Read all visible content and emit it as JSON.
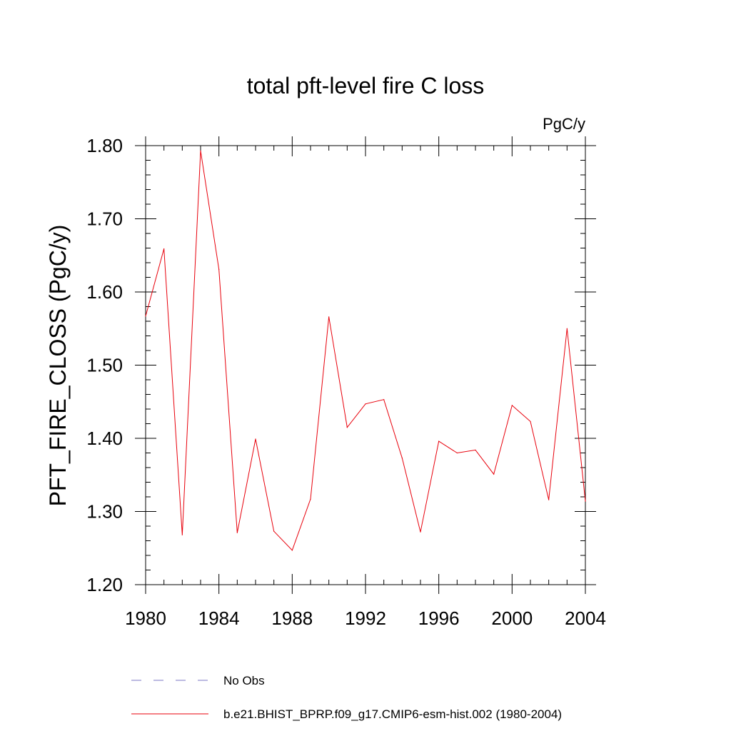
{
  "chart_data": {
    "type": "line",
    "title": "total pft-level fire C loss",
    "units_label": "PgC/y",
    "ylabel": "PFT_FIRE_CLOSS  (PgC/y)",
    "xlabel": "",
    "xlim": [
      1980,
      2004
    ],
    "ylim": [
      1.2,
      1.8
    ],
    "x_ticks": [
      1980,
      1984,
      1988,
      1992,
      1996,
      2000,
      2004
    ],
    "x_tick_labels": [
      "1980",
      "1984",
      "1988",
      "1992",
      "1996",
      "2000",
      "2004"
    ],
    "y_ticks": [
      1.2,
      1.3,
      1.4,
      1.5,
      1.6,
      1.7,
      1.8
    ],
    "y_tick_labels": [
      "1.20",
      "1.30",
      "1.40",
      "1.50",
      "1.60",
      "1.70",
      "1.80"
    ],
    "series": [
      {
        "name": "b.e21.BHIST_BPRP.f09_g17.CMIP6-esm-hist.002 (1980-2004)",
        "color": "#e8000b",
        "x": [
          1980,
          1981,
          1982,
          1983,
          1984,
          1985,
          1986,
          1987,
          1988,
          1989,
          1990,
          1991,
          1992,
          1993,
          1994,
          1995,
          1996,
          1997,
          1998,
          1999,
          2000,
          2001,
          2002,
          2003,
          2004
        ],
        "values": [
          1.567,
          1.659,
          1.268,
          1.793,
          1.631,
          1.271,
          1.399,
          1.273,
          1.247,
          1.317,
          1.566,
          1.415,
          1.447,
          1.453,
          1.373,
          1.272,
          1.396,
          1.38,
          1.384,
          1.351,
          1.445,
          1.423,
          1.316,
          1.55,
          1.314
        ]
      }
    ],
    "legend": [
      {
        "label": "No Obs",
        "style": "dashed",
        "color": "#7b74c4"
      },
      {
        "label": "b.e21.BHIST_BPRP.f09_g17.CMIP6-esm-hist.002 (1980-2004)",
        "style": "solid",
        "color": "#e8000b"
      }
    ]
  }
}
